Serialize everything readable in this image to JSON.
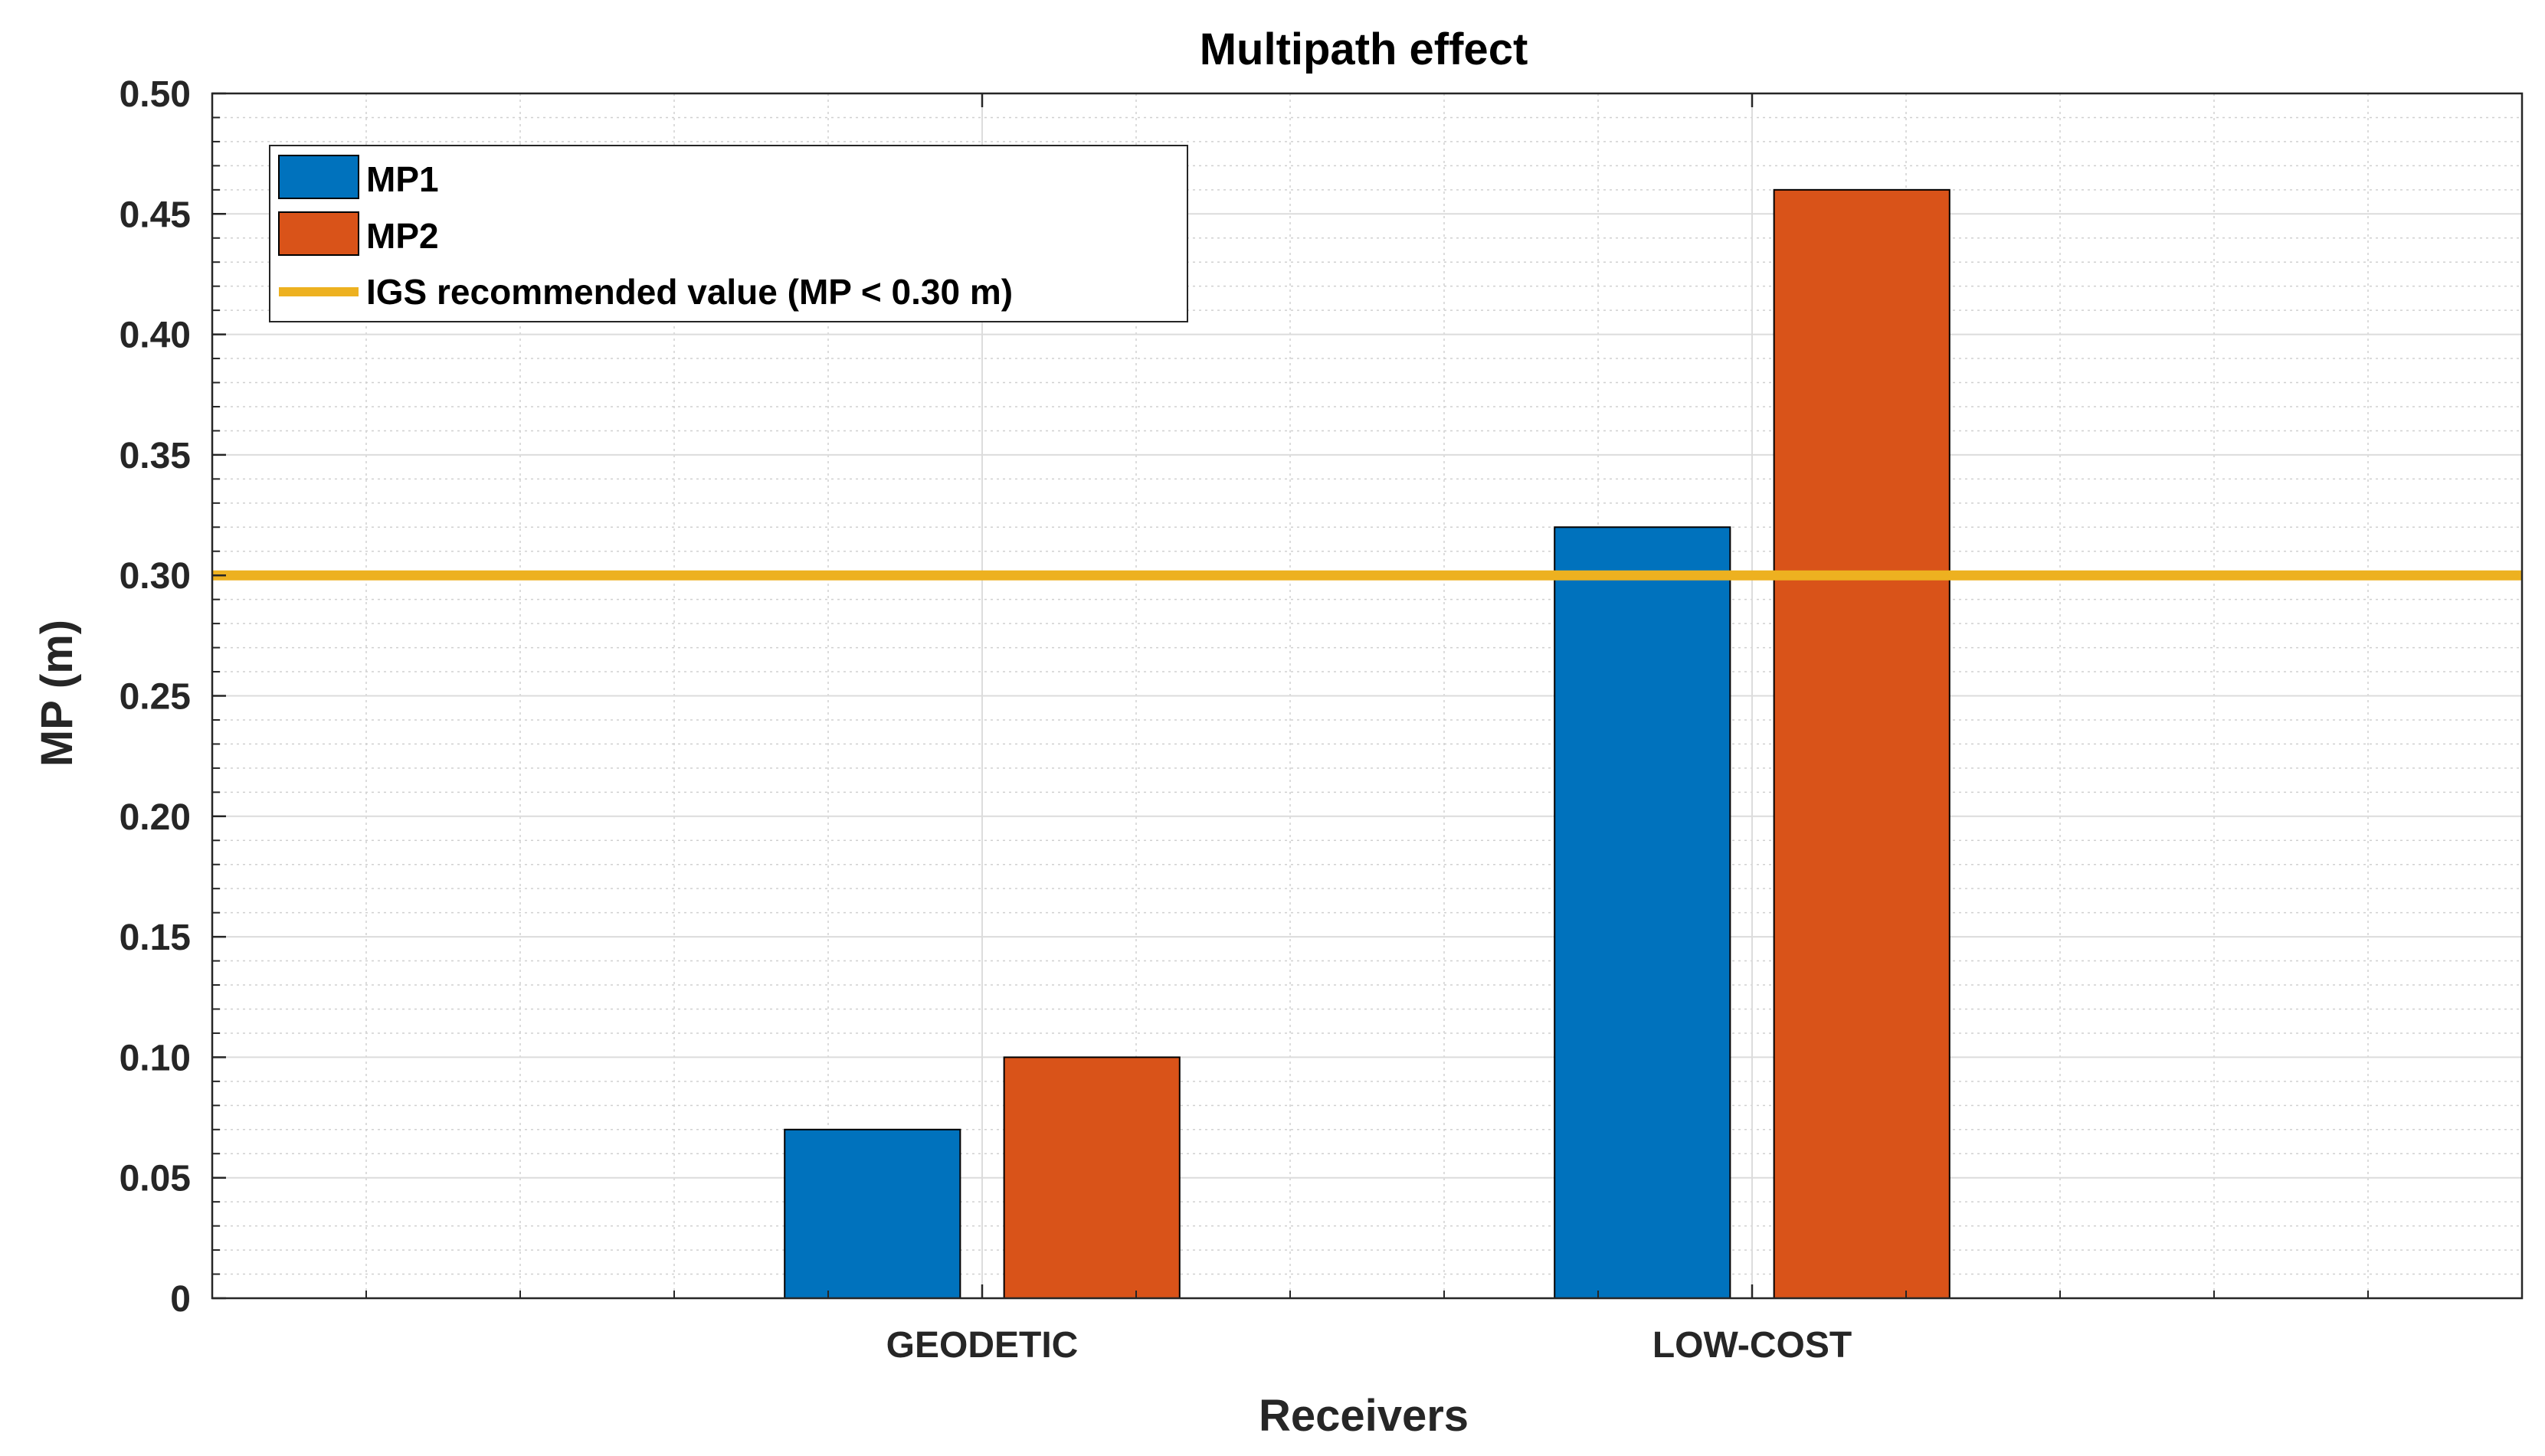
{
  "chart_data": {
    "type": "bar",
    "title": "Multipath effect",
    "xlabel": "Receivers",
    "ylabel": "MP (m)",
    "categories": [
      "GEODETIC",
      "LOW-COST"
    ],
    "series": [
      {
        "name": "MP1",
        "color": "#0072BD",
        "values": [
          0.07,
          0.32
        ]
      },
      {
        "name": "MP2",
        "color": "#D95319",
        "values": [
          0.1,
          0.46
        ]
      }
    ],
    "reference_line": {
      "name": "IGS recommended value (MP < 0.30 m)",
      "value": 0.3,
      "color": "#EDB120"
    },
    "ylim": [
      0,
      0.5
    ],
    "xlim": [
      0,
      3
    ],
    "yticks": [
      0,
      0.05,
      0.1,
      0.15,
      0.2,
      0.25,
      0.3,
      0.35,
      0.4,
      0.45,
      0.5
    ],
    "ytick_labels": [
      "0",
      "0.05",
      "0.10",
      "0.15",
      "0.20",
      "0.25",
      "0.30",
      "0.35",
      "0.40",
      "0.45",
      "0.50"
    ],
    "grid": true,
    "minor_grid": true,
    "legend_position": "top-left"
  }
}
